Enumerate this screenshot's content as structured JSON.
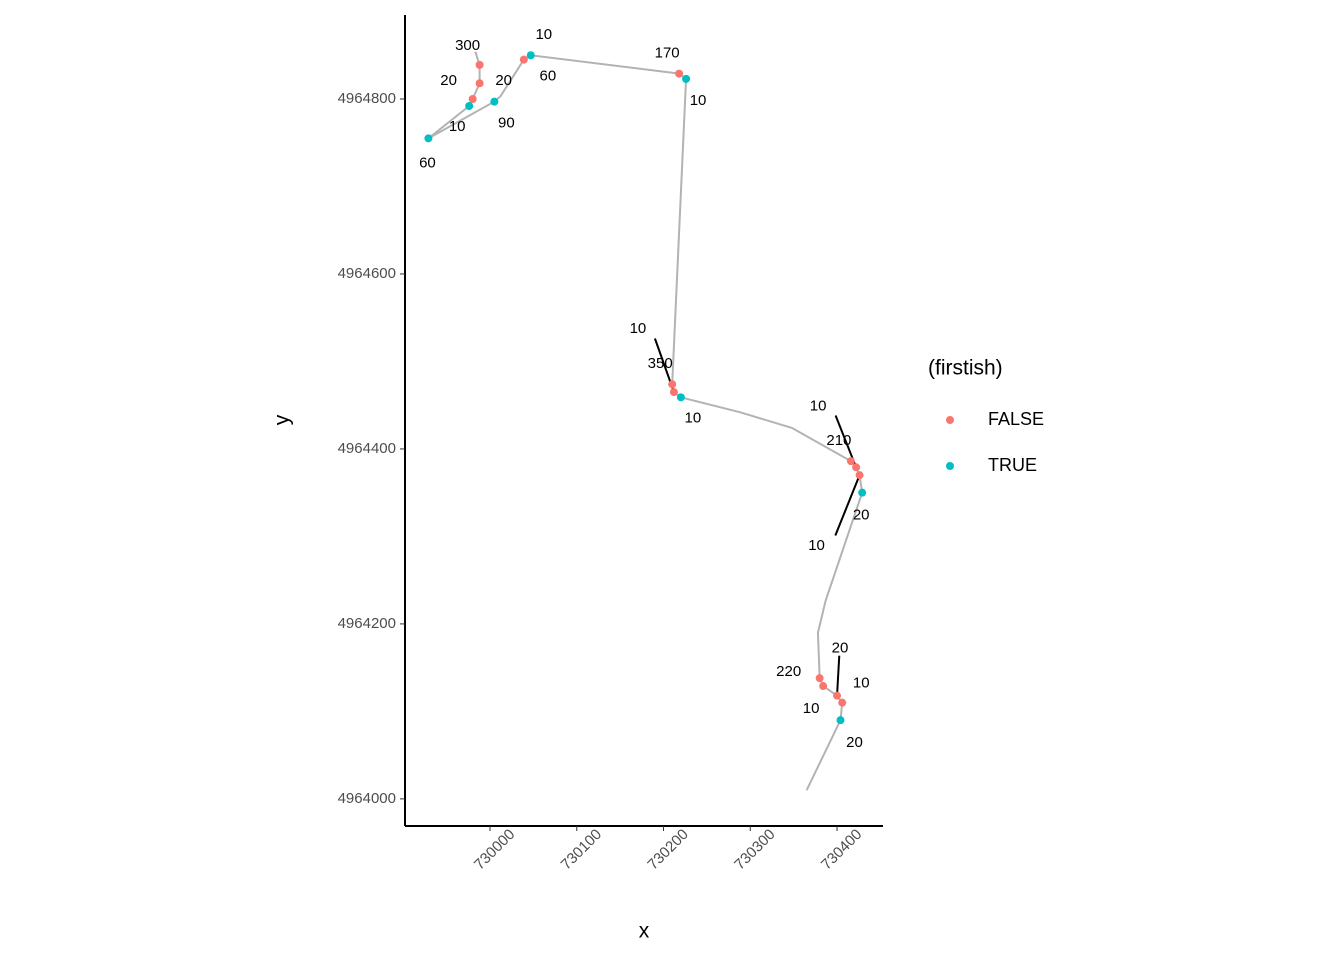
{
  "chart_data": {
    "type": "scatter",
    "x_label": "x",
    "y_label": "y",
    "legend_title": "(firstish)",
    "xlim": [
      729902,
      730453
    ],
    "ylim": [
      4963969,
      4964896
    ],
    "xticks": [
      730000,
      730100,
      730200,
      730300,
      730400
    ],
    "yticks": [
      4964000,
      4964200,
      4964400,
      4964600,
      4964800
    ],
    "path": {
      "color": "#b3b3b3",
      "x": [
        730365,
        730404,
        730406,
        730400,
        730384,
        730380,
        730378,
        730387,
        730429,
        730426,
        730422,
        730416,
        730348,
        730288,
        730220,
        730212,
        730210,
        730226,
        730218,
        730047,
        730039,
        730012,
        730005,
        729929,
        729976,
        729980,
        729988,
        729988,
        729983
      ],
      "y": [
        4964010,
        4964090,
        4964110,
        4964118,
        4964129,
        4964138,
        4964190,
        4964227,
        4964350,
        4964370,
        4964379,
        4964386,
        4964424,
        4964442,
        4964459,
        4964465,
        4964474,
        4964823,
        4964829,
        4964850,
        4964845,
        4964803,
        4964797,
        4964755,
        4964792,
        4964800,
        4964818,
        4964839,
        4964854
      ]
    },
    "series": [
      {
        "name": "FALSE",
        "color": "#f8766d",
        "x": [
          729988,
          729988,
          729980,
          730039,
          730218,
          730210,
          730212,
          730416,
          730422,
          730426,
          730380,
          730384,
          730400,
          730406
        ],
        "y": [
          4964839,
          4964818,
          4964800,
          4964845,
          4964829,
          4964474,
          4964465,
          4964386,
          4964379,
          4964370,
          4964138,
          4964129,
          4964118,
          4964110
        ],
        "labels": [
          300,
          20,
          20,
          60,
          170,
          350,
          10,
          210,
          10,
          10,
          220,
          10,
          20,
          10
        ]
      },
      {
        "name": "TRUE",
        "color": "#00bfc4",
        "x": [
          730047,
          730226,
          729976,
          730005,
          729929,
          730220,
          730429,
          730404
        ],
        "y": [
          4964850,
          4964823,
          4964792,
          4964797,
          4964755,
          4964459,
          4964350,
          4964090
        ],
        "labels": [
          10,
          10,
          10,
          90,
          60,
          10,
          20,
          20
        ]
      }
    ]
  }
}
